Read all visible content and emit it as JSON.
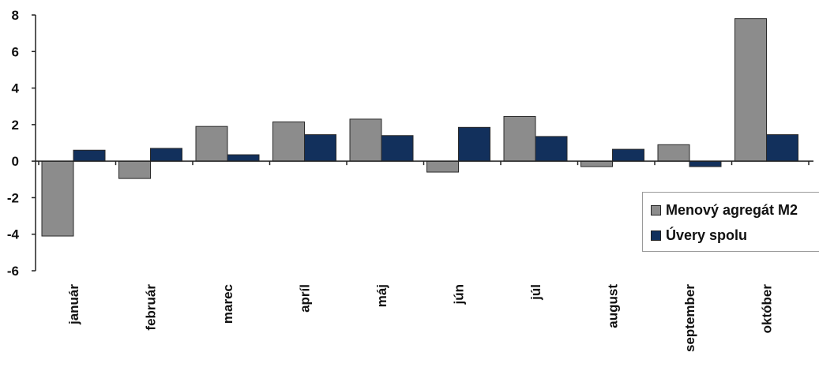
{
  "chart_data": {
    "type": "bar",
    "categories": [
      "január",
      "február",
      "marec",
      "apríl",
      "máj",
      "jún",
      "júl",
      "august",
      "september",
      "október"
    ],
    "series": [
      {
        "name": "Menový agregát M2",
        "color": "#8c8c8c",
        "values": [
          -4.1,
          -0.95,
          1.9,
          2.15,
          2.3,
          -0.6,
          2.45,
          -0.3,
          0.9,
          7.8
        ]
      },
      {
        "name": "Úvery spolu",
        "color": "#12305c",
        "values": [
          0.6,
          0.7,
          0.35,
          1.45,
          1.4,
          1.85,
          1.35,
          0.65,
          -0.3,
          1.45
        ]
      }
    ],
    "ylim": [
      -6,
      8
    ],
    "yticks": [
      "8",
      "6",
      "4",
      "2",
      "0",
      "-2",
      "-4",
      "-6"
    ],
    "ytick_values": [
      8,
      6,
      4,
      2,
      0,
      -2,
      -4,
      -6
    ],
    "grid": false,
    "legend": "right"
  }
}
